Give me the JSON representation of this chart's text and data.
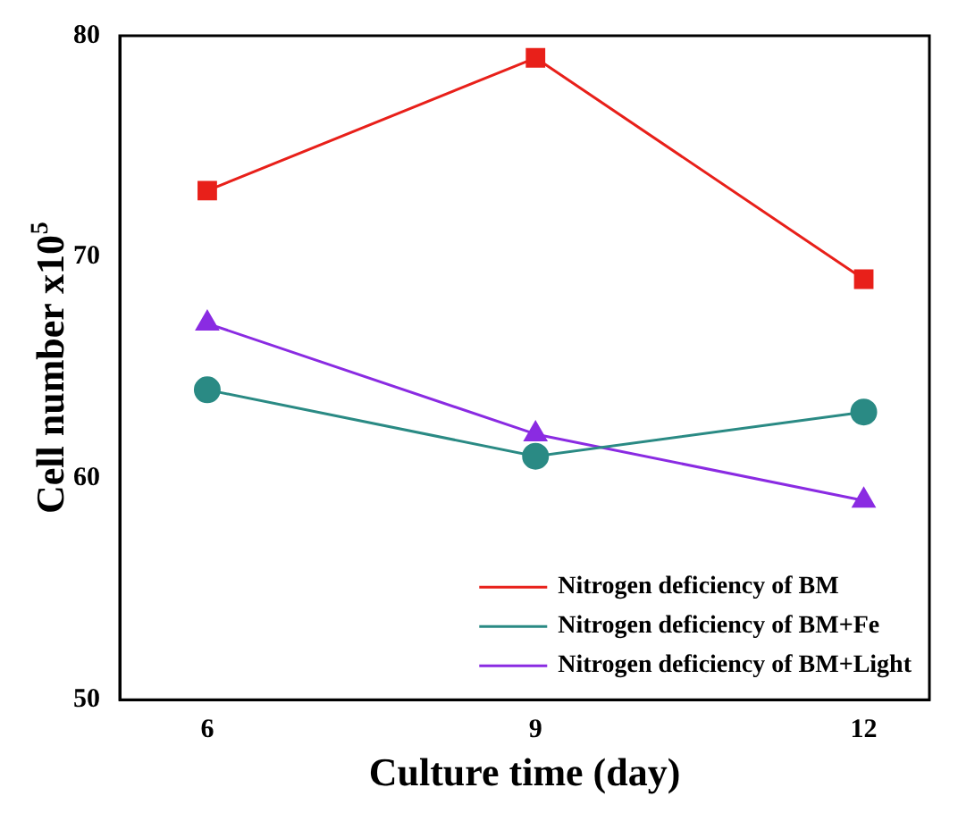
{
  "chart_data": {
    "type": "line",
    "xlabel": "Culture time (day)",
    "ylabel": "Cell number x10$^{5}$",
    "x": [
      6,
      9,
      12
    ],
    "xlim": [
      5.2,
      12.6
    ],
    "xticks": [
      6,
      9,
      12
    ],
    "ylim": [
      50,
      80
    ],
    "yticks": [
      50,
      60,
      70,
      80
    ],
    "grid": false,
    "legend": "bottom right",
    "line_style": "solid",
    "series": [
      {
        "name": "Nitrogen deficiency of BM",
        "color": "#e8201a",
        "marker": "square",
        "values": [
          73,
          79,
          69
        ]
      },
      {
        "name": "Nitrogen deficiency of BM+Fe",
        "color": "#2a8a84",
        "marker": "circle",
        "values": [
          64,
          61,
          63
        ]
      },
      {
        "name": "Nitrogen deficiency of BM+Light",
        "color": "#8a2be2",
        "marker": "triangle",
        "values": [
          67,
          62,
          59
        ]
      }
    ]
  }
}
